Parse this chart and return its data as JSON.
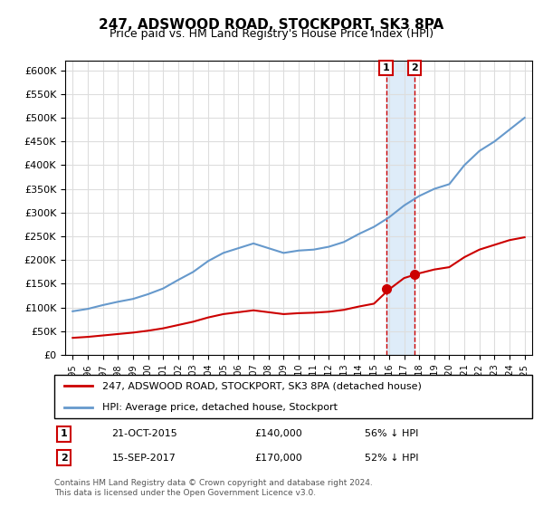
{
  "title": "247, ADSWOOD ROAD, STOCKPORT, SK3 8PA",
  "subtitle": "Price paid vs. HM Land Registry's House Price Index (HPI)",
  "legend_line1": "247, ADSWOOD ROAD, STOCKPORT, SK3 8PA (detached house)",
  "legend_line2": "HPI: Average price, detached house, Stockport",
  "sale1_label": "1",
  "sale1_date": "21-OCT-2015",
  "sale1_price": "£140,000",
  "sale1_hpi": "56% ↓ HPI",
  "sale1_year": 2015.8,
  "sale2_label": "2",
  "sale2_date": "15-SEP-2017",
  "sale2_price": "£170,000",
  "sale2_hpi": "52% ↓ HPI",
  "sale2_year": 2017.7,
  "footnote": "Contains HM Land Registry data © Crown copyright and database right 2024.\nThis data is licensed under the Open Government Licence v3.0.",
  "red_line_color": "#cc0000",
  "blue_line_color": "#6699cc",
  "shade_color": "#d0e4f7",
  "vline_color": "#cc0000",
  "marker_color": "#cc0000",
  "ylim": [
    0,
    620000
  ],
  "yticks": [
    0,
    50000,
    100000,
    150000,
    200000,
    250000,
    300000,
    350000,
    400000,
    450000,
    500000,
    550000,
    600000
  ],
  "background_color": "#ffffff",
  "grid_color": "#dddddd",
  "hpi_years": [
    1995,
    1996,
    1997,
    1998,
    1999,
    2000,
    2001,
    2002,
    2003,
    2004,
    2005,
    2006,
    2007,
    2008,
    2009,
    2010,
    2011,
    2012,
    2013,
    2014,
    2015,
    2016,
    2017,
    2018,
    2019,
    2020,
    2021,
    2022,
    2023,
    2024,
    2025
  ],
  "hpi_values": [
    92000,
    97000,
    105000,
    112000,
    118000,
    128000,
    140000,
    158000,
    175000,
    198000,
    215000,
    225000,
    235000,
    225000,
    215000,
    220000,
    222000,
    228000,
    238000,
    255000,
    270000,
    290000,
    315000,
    335000,
    350000,
    360000,
    400000,
    430000,
    450000,
    475000,
    500000
  ],
  "red_years": [
    1995,
    1996,
    1997,
    1998,
    1999,
    2000,
    2001,
    2002,
    2003,
    2004,
    2005,
    2006,
    2007,
    2008,
    2009,
    2010,
    2011,
    2012,
    2013,
    2014,
    2015,
    2016,
    2017,
    2018,
    2019,
    2020,
    2021,
    2022,
    2023,
    2024,
    2025
  ],
  "red_values": [
    36000,
    38000,
    41000,
    44000,
    47000,
    51000,
    56000,
    63000,
    70000,
    79000,
    86000,
    90000,
    94000,
    90000,
    86000,
    88000,
    89000,
    91000,
    95000,
    102000,
    108000,
    138000,
    162000,
    172000,
    180000,
    185000,
    206000,
    222000,
    232000,
    242000,
    248000
  ],
  "xmin": 1994.5,
  "xmax": 2025.5
}
